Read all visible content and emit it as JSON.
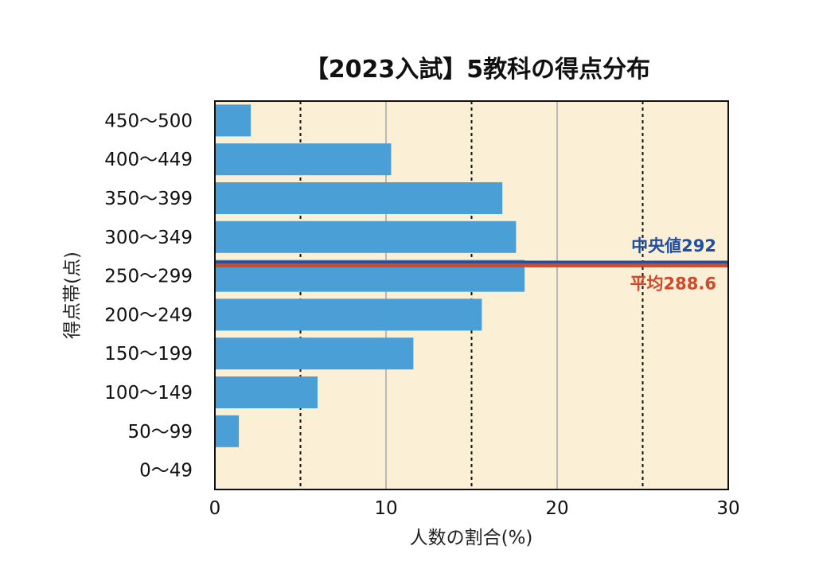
{
  "chart_data": {
    "type": "bar",
    "orientation": "horizontal",
    "title": "【2023入試】5教科の得点分布",
    "xlabel": "人数の割合(%)",
    "ylabel": "得点帯(点)",
    "categories": [
      "450〜500",
      "400〜449",
      "350〜399",
      "300〜349",
      "250〜299",
      "200〜249",
      "150〜199",
      "100〜149",
      "50〜99",
      "0〜49"
    ],
    "values": [
      2.1,
      10.3,
      16.8,
      17.6,
      18.1,
      15.6,
      11.6,
      6.0,
      1.4,
      0
    ],
    "xlim": [
      0,
      30
    ],
    "xticks": [
      "0",
      "10",
      "20",
      "30"
    ],
    "grid": "vertical",
    "colors": {
      "bar": "#4a9fd6",
      "plot_bg": "#fbf0d6",
      "median": "#1f4ea3",
      "mean": "#d2482a",
      "solid_grid": "#b8b8b8",
      "dotted_grid": "#111111"
    },
    "annotations": {
      "median": {
        "label": "中央値292",
        "value": 292
      },
      "mean": {
        "label": "平均288.6",
        "value": 288.6
      }
    }
  }
}
